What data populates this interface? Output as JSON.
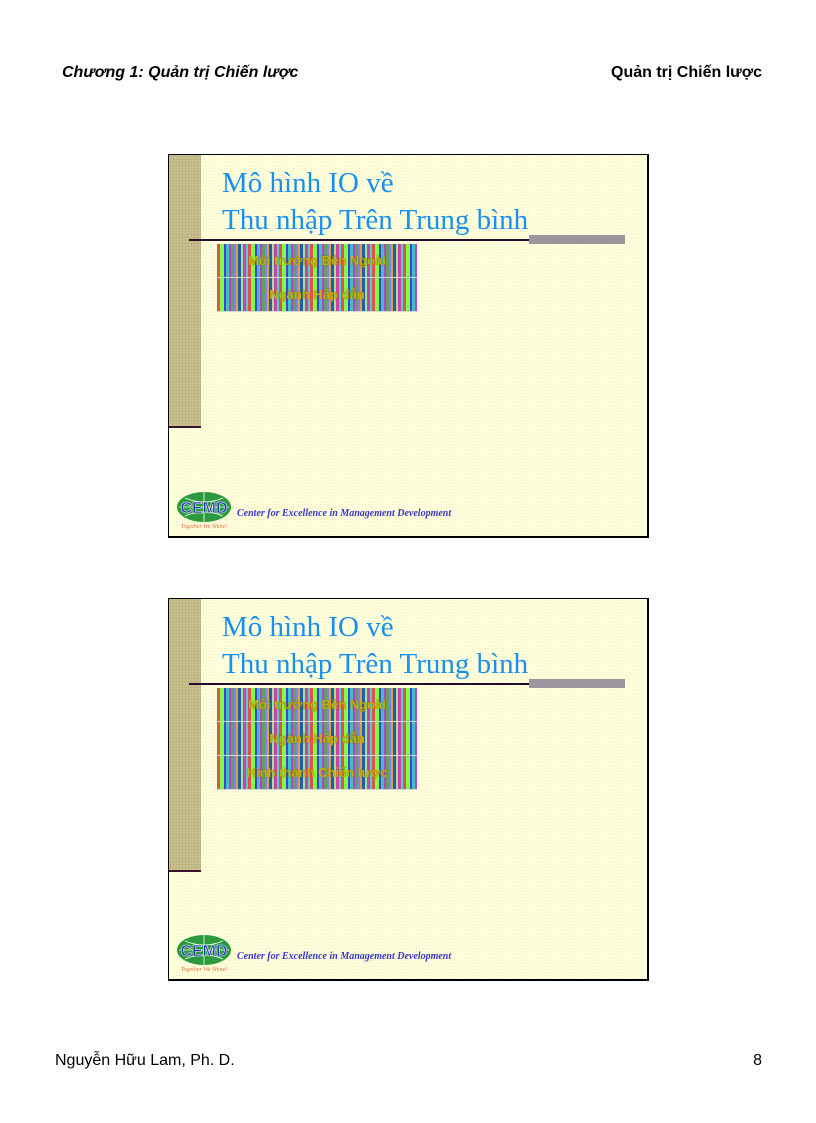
{
  "header": {
    "chapter": "Chương 1: Quản trị Chiến lược",
    "course": "Quản trị Chiến lược"
  },
  "footer": {
    "author": "Nguyễn Hữu Lam, Ph. D.",
    "page_number": "8"
  },
  "slides": [
    {
      "title_line1": "Mô hình IO về",
      "title_line2": "Thu nhập Trên Trung bình",
      "items": [
        "Môi trường Bên Ngoài",
        "Ngành Hấp dẫn"
      ],
      "org": "Center for Excellence in Management Development",
      "logo_text": "CEMD",
      "logo_motto": "Together We Shine!"
    },
    {
      "title_line1": "Mô hình IO về",
      "title_line2": "Thu nhập Trên Trung bình",
      "items": [
        "Môi trường Bên Ngoài",
        "Ngành Hấp dẫn",
        "Hình thành Chiến lược"
      ],
      "org": "Center for Excellence in Management Development",
      "logo_text": "CEMD",
      "logo_motto": "Together We Shine!"
    }
  ],
  "colors": {
    "title": "#1a8ff0",
    "slide_bg": "#ffffdc",
    "band": "#c8c08c",
    "org_text": "#3838c8"
  }
}
